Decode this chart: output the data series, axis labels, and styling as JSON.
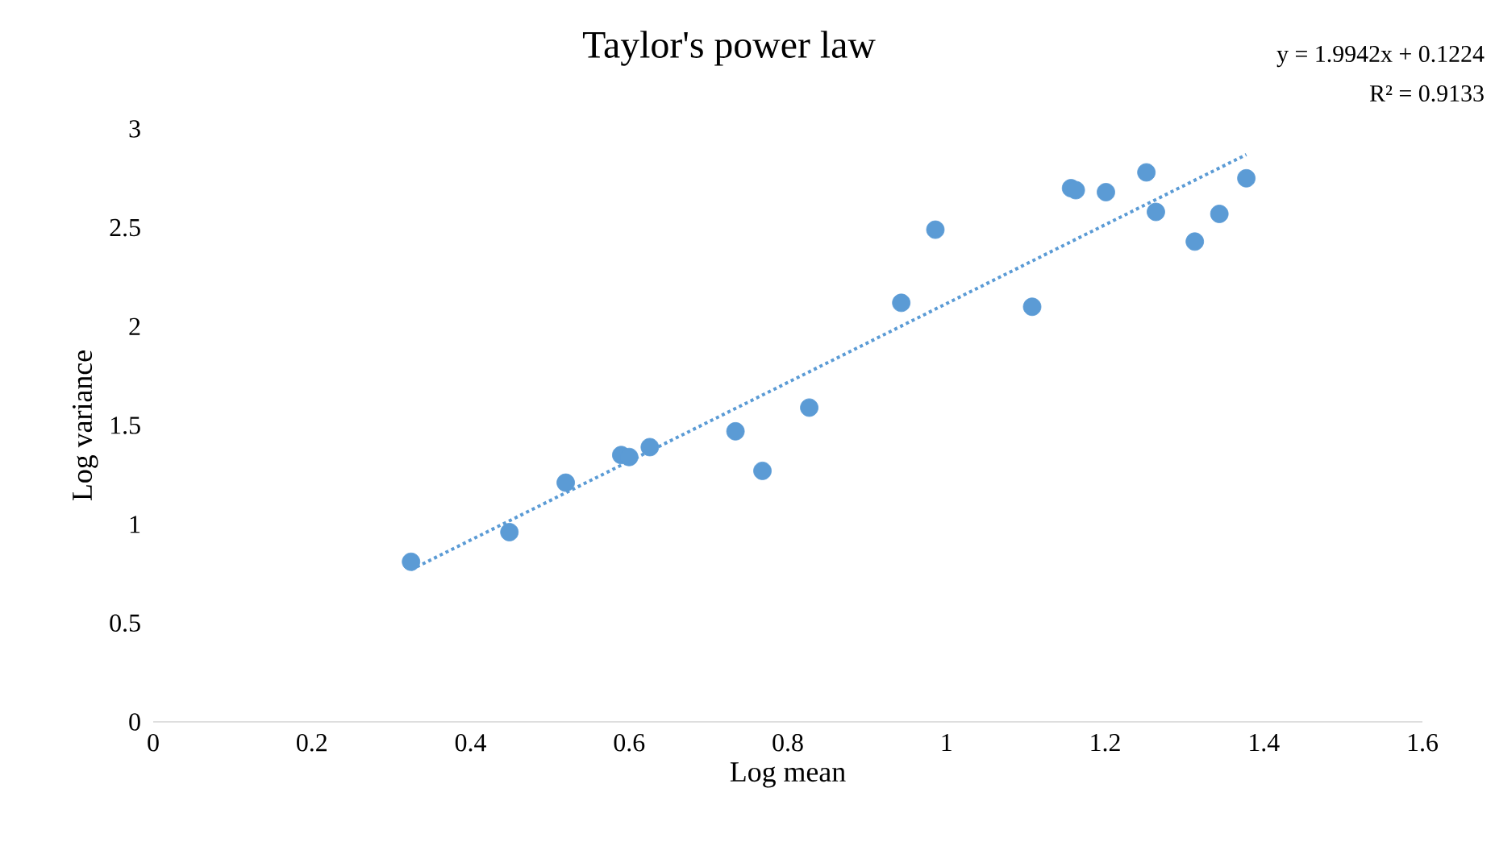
{
  "chart_data": {
    "type": "scatter",
    "title": "Taylor's power law",
    "xlabel": "Log mean",
    "ylabel": "Log variance",
    "annotations": [
      "y = 1.9942x + 0.1224",
      "R² = 0.9133"
    ],
    "xlim": [
      0,
      1.6
    ],
    "ylim": [
      0,
      3
    ],
    "xticks": [
      0,
      0.2,
      0.4,
      0.6,
      0.8,
      1,
      1.2,
      1.4,
      1.6
    ],
    "yticks": [
      0,
      0.5,
      1,
      1.5,
      2,
      2.5,
      3
    ],
    "grid": false,
    "series": [
      {
        "color": "#5b9bd5",
        "marker": "circle",
        "x": [
          0.325,
          0.449,
          0.52,
          0.59,
          0.6,
          0.626,
          0.734,
          0.768,
          0.827,
          0.943,
          0.986,
          1.108,
          1.157,
          1.163,
          1.201,
          1.252,
          1.264,
          1.313,
          1.344,
          1.378
        ],
        "values": [
          0.81,
          0.96,
          1.21,
          1.35,
          1.34,
          1.39,
          1.47,
          1.27,
          1.59,
          2.12,
          2.49,
          2.1,
          2.7,
          2.69,
          2.68,
          2.78,
          2.58,
          2.43,
          2.57,
          2.75
        ]
      },
      {
        "type": "line",
        "color": "#5b9bd5",
        "marker": "none",
        "line_style": "dotted",
        "x": [
          0.325,
          1.378
        ],
        "values": [
          0.77,
          2.87
        ]
      }
    ]
  }
}
